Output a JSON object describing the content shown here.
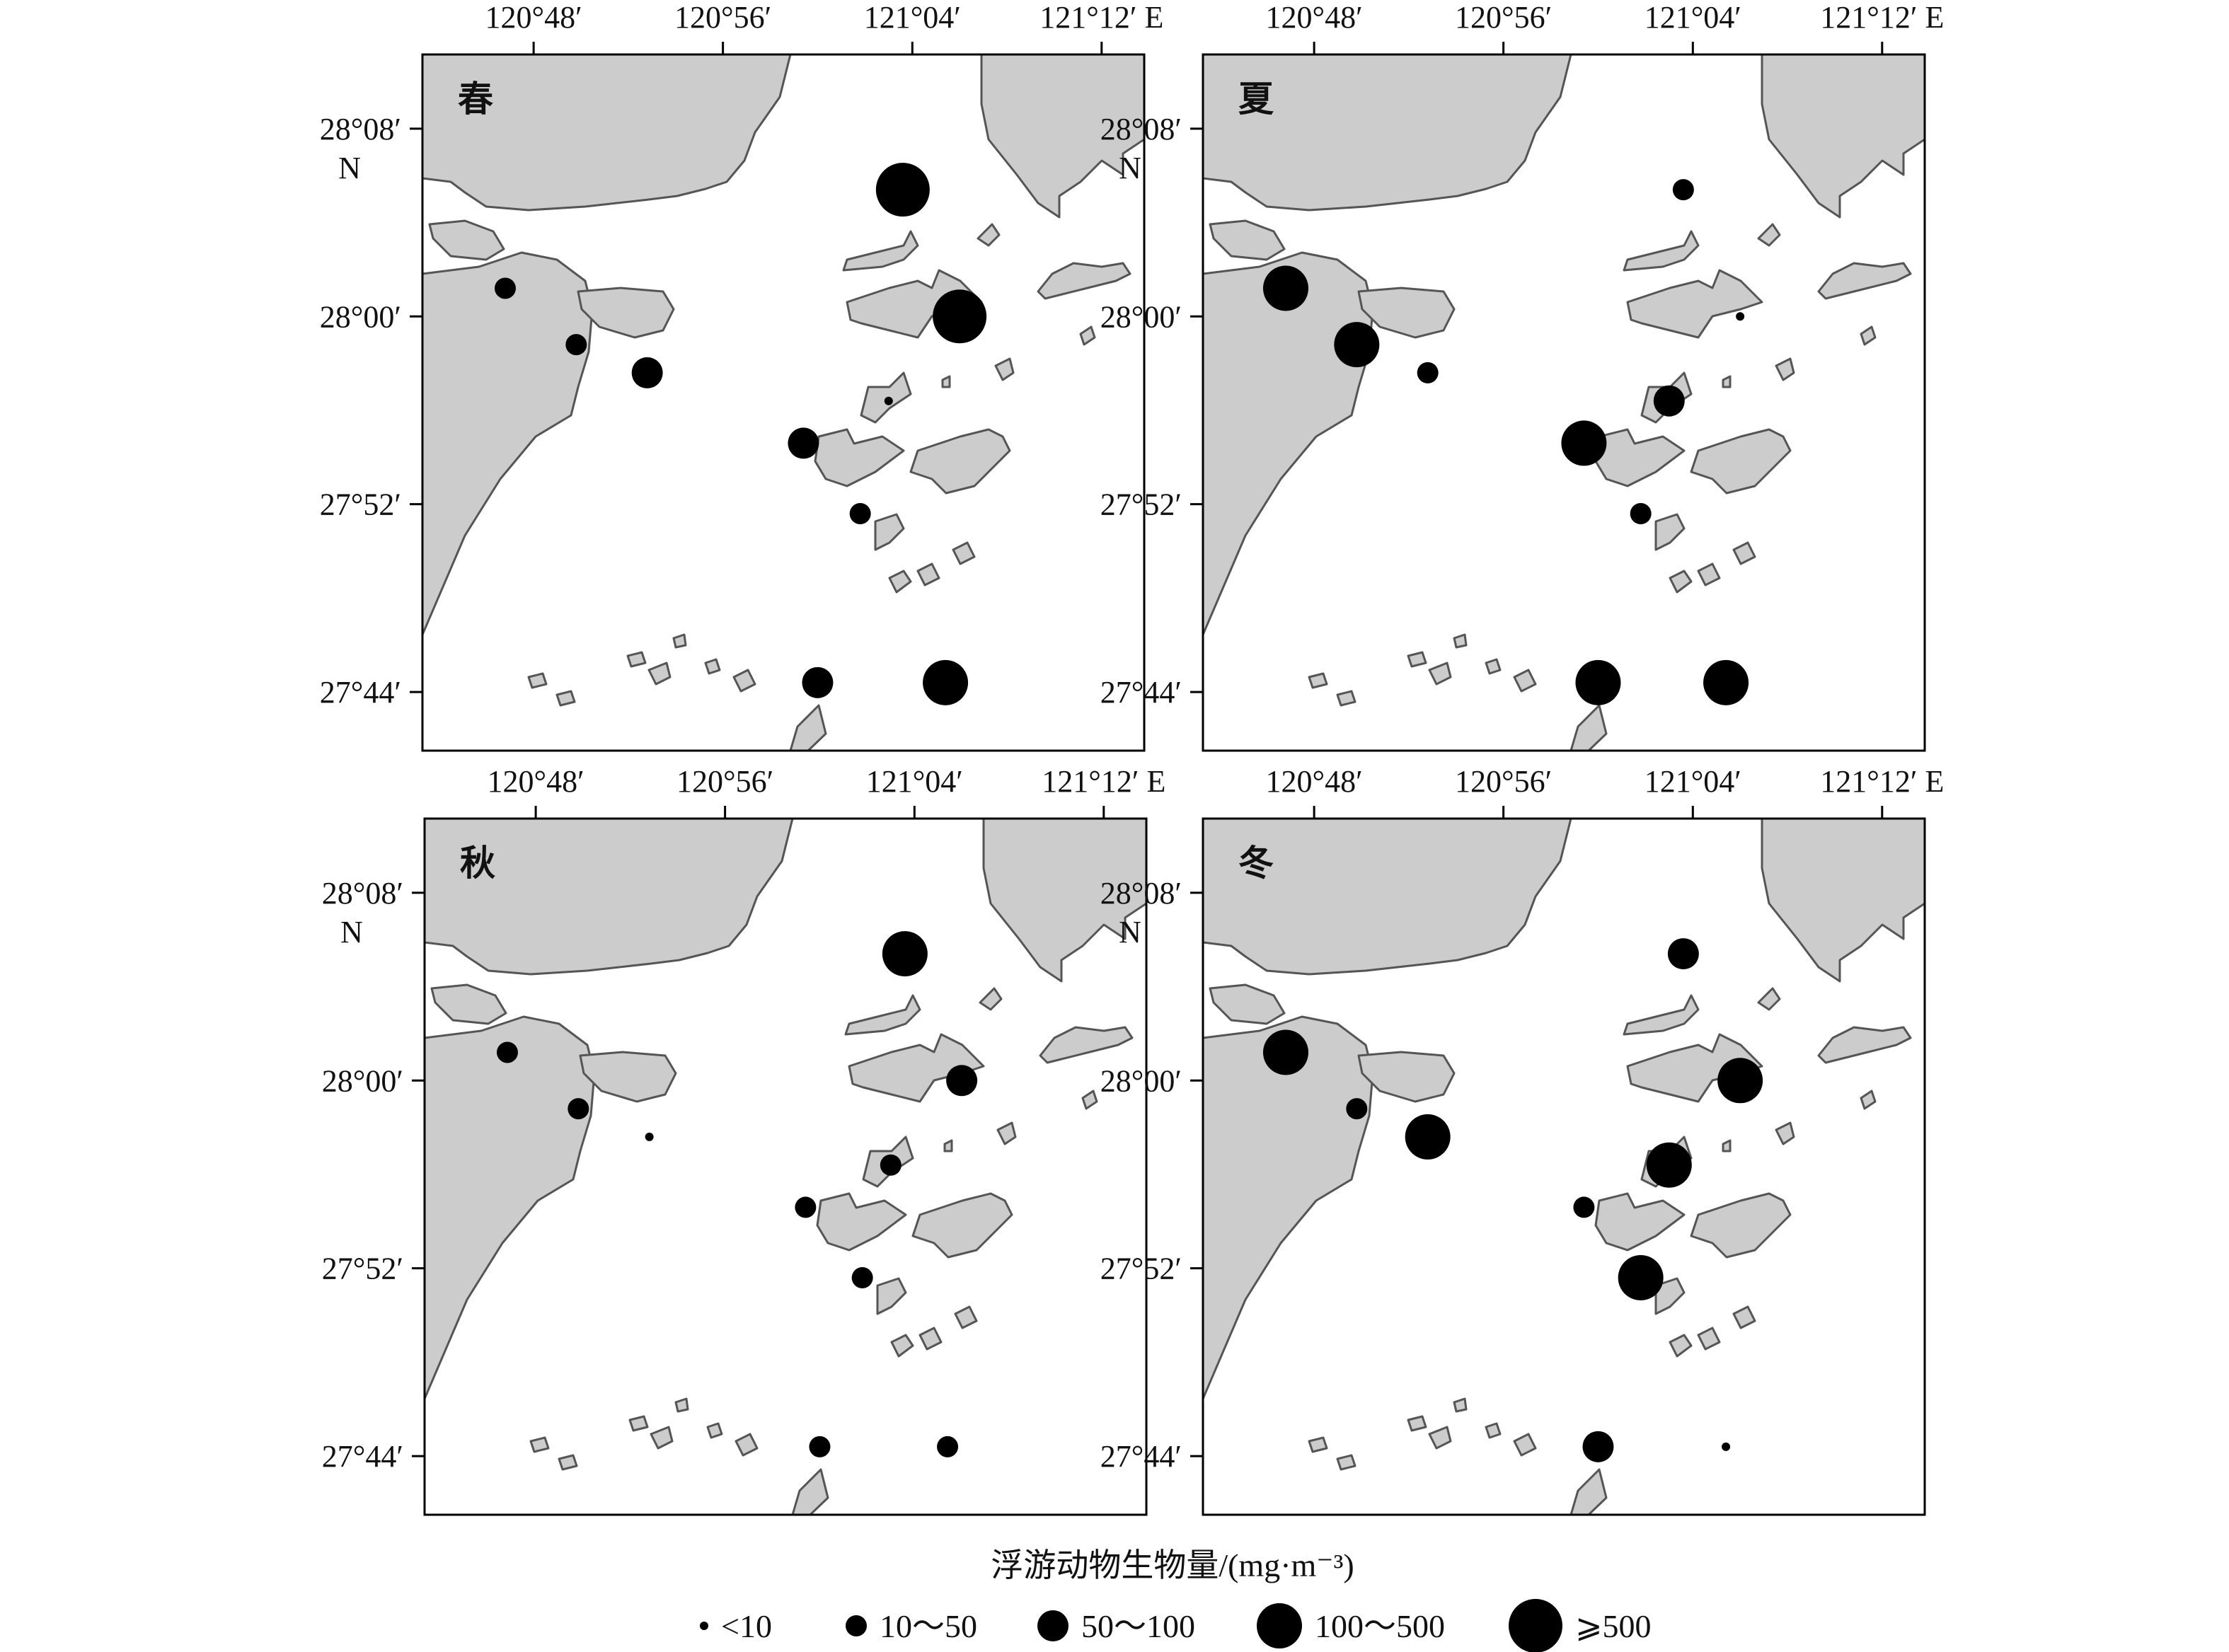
{
  "figure": {
    "x_ticks": [
      "120°48′",
      "120°56′",
      "121°04′",
      "121°12′ E"
    ],
    "y_ticks": [
      "28°08′",
      "28°00′",
      "27°52′",
      "27°44′"
    ],
    "north_unit": "N",
    "colors": {
      "land": "#cccccc",
      "coast": "#555555",
      "marker": "#000000"
    }
  },
  "panels": [
    {
      "label": "春"
    },
    {
      "label": "夏"
    },
    {
      "label": "秋"
    },
    {
      "label": "冬"
    }
  ],
  "legend": {
    "title": "浮游动物生物量/(mg·m⁻³)",
    "classes": [
      {
        "label": "<10"
      },
      {
        "label": "10～50"
      },
      {
        "label": "50～100"
      },
      {
        "label": "100～500"
      },
      {
        "label": "⩾500"
      }
    ]
  },
  "map_data": {
    "variable": "浮游动物生物量",
    "unit": "mg·m⁻³",
    "class_labels": [
      "<10",
      "10～50",
      "50～100",
      "100～500",
      "⩾500"
    ],
    "stations": [
      {
        "id": "S1",
        "lon": 120.78,
        "lat": 28.02
      },
      {
        "id": "S2",
        "lon": 120.83,
        "lat": 27.98
      },
      {
        "id": "S3",
        "lon": 120.88,
        "lat": 27.96
      },
      {
        "id": "S4",
        "lon": 120.99,
        "lat": 27.91
      },
      {
        "id": "S5",
        "lon": 121.05,
        "lat": 27.94
      },
      {
        "id": "S6",
        "lon": 121.06,
        "lat": 28.09
      },
      {
        "id": "S7",
        "lon": 121.1,
        "lat": 28.0
      },
      {
        "id": "S8",
        "lon": 121.03,
        "lat": 27.86
      },
      {
        "id": "S9",
        "lon": 121.0,
        "lat": 27.74
      },
      {
        "id": "S10",
        "lon": 121.09,
        "lat": 27.74
      }
    ],
    "seasons": [
      {
        "season": "春",
        "classes": {
          "S1": "10～50",
          "S2": "10～50",
          "S3": "50～100",
          "S4": "50～100",
          "S5": "<10",
          "S6": "⩾500",
          "S7": "⩾500",
          "S8": "10～50",
          "S9": "50～100",
          "S10": "100～500"
        }
      },
      {
        "season": "夏",
        "classes": {
          "S1": "100～500",
          "S2": "100～500",
          "S3": "10～50",
          "S4": "100～500",
          "S5": "50～100",
          "S6": "10～50",
          "S7": "<10",
          "S8": "10～50",
          "S9": "100～500",
          "S10": "100～500"
        }
      },
      {
        "season": "秋",
        "classes": {
          "S1": "10～50",
          "S2": "10～50",
          "S3": "<10",
          "S4": "10～50",
          "S5": "10～50",
          "S6": "100～500",
          "S7": "50～100",
          "S8": "10～50",
          "S9": "10～50",
          "S10": "10～50"
        }
      },
      {
        "season": "冬",
        "classes": {
          "S1": "100～500",
          "S2": "10～50",
          "S3": "100～500",
          "S4": "10～50",
          "S5": "100～500",
          "S6": "50～100",
          "S7": "100～500",
          "S8": "100～500",
          "S9": "50～100",
          "S10": "<10"
        }
      }
    ]
  }
}
